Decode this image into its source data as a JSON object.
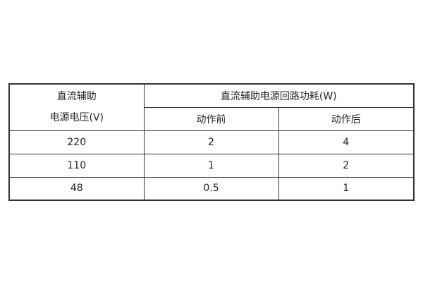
{
  "table": {
    "header": {
      "col1_line1": "直流辅助",
      "col1_line2": "电源电压(V)",
      "group": "直流辅助电源回路功耗(W)",
      "before": "动作前",
      "after": "动作后"
    },
    "rows": [
      {
        "voltage": "220",
        "before": "2",
        "after": "4"
      },
      {
        "voltage": "110",
        "before": "1",
        "after": "2"
      },
      {
        "voltage": "48",
        "before": "0.5",
        "after": "1"
      }
    ]
  }
}
